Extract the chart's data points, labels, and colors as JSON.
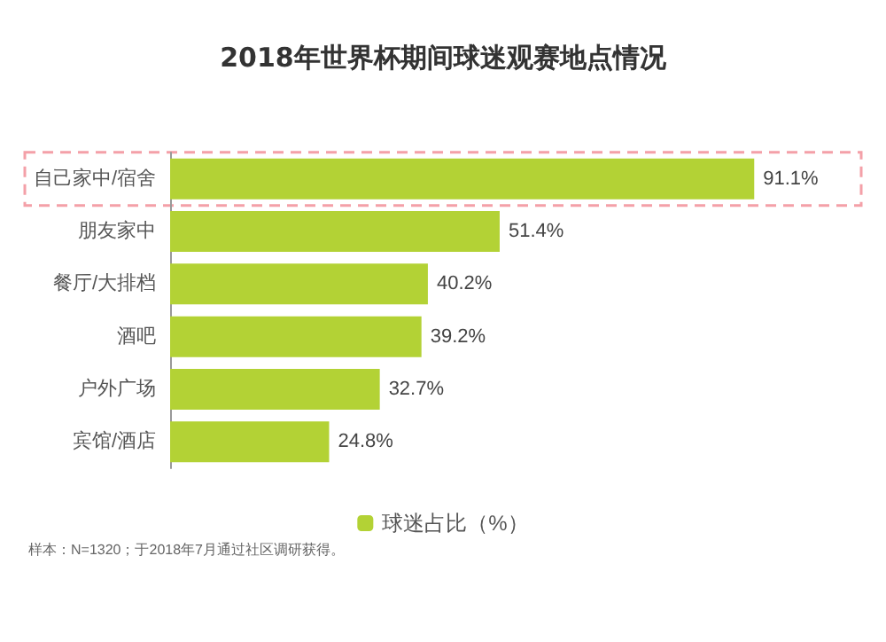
{
  "chart_data": {
    "type": "bar",
    "orientation": "horizontal",
    "title": "2018年世界杯期间球迷观赛地点情况",
    "categories": [
      "自己家中/宿舍",
      "朋友家中",
      "餐厅/大排档",
      "酒吧",
      "户外广场",
      "宾馆/酒店"
    ],
    "series": [
      {
        "name": "球迷占比（%）",
        "color": "#b3d235",
        "values": [
          91.1,
          51.4,
          40.2,
          39.2,
          32.7,
          24.8
        ],
        "value_labels": [
          "91.1%",
          "51.4%",
          "40.2%",
          "39.2%",
          "32.7%",
          "24.8%"
        ]
      }
    ],
    "legend": "bottom",
    "annotations": [
      "样本：N=1320；于2018年7月通过社区调研获得。"
    ]
  }
}
